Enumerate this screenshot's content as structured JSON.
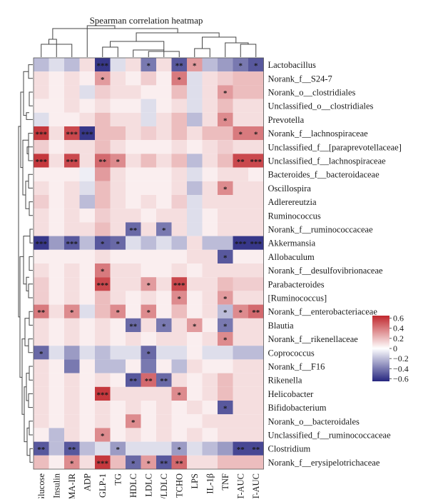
{
  "chart_data": {
    "type": "heatmap",
    "title": "Spearman correlation heatmap",
    "columns": [
      "Glucose",
      "Insulin",
      "HOMA-IR",
      "ADP",
      "GLP-1",
      "TG",
      "HDLC",
      "LDLC",
      "HDLC/LDLC",
      "TCHO",
      "LPS",
      "IL-1β",
      "TNF",
      "IGTT-AUC",
      "ITT-AUC"
    ],
    "rows": [
      "Lactobacillus",
      "Norank_f__S24-7",
      "Norank_o__clostridiales",
      "Unclassified_o__clostridiales",
      "Prevotella",
      "Norank_f__lachnospiraceae",
      "Unclassified_f__[paraprevotellaceae]",
      "Unclassified_f__lachnospiraceae",
      "Bacteroides_f__bacteroidaceae",
      "Oscillospira",
      "Adlerereutzia",
      "Ruminococcus",
      "Norank_f__ruminococcaceae",
      "Akkermansia",
      "Allobaculum",
      "Norank_f__desulfovibrionaceae",
      "Parabacteroides",
      "[Ruminococcus]",
      "Norank_f__enterobacteriaceae",
      "Blautia",
      "Norank_f__rikenellaceae",
      "Coprococcus",
      "Norank_f__F16",
      "Rikenella",
      "Helicobacter",
      "Bifidobacterium",
      "Norank_o__bacteroidales",
      "Unclassified_f__ruminococcaceae",
      "Clostridium",
      "Norank_f__erysipelotrichaceae"
    ],
    "values": [
      [
        -0.2,
        -0.1,
        -0.2,
        0.1,
        -0.6,
        -0.1,
        0.1,
        -0.4,
        0.1,
        -0.5,
        0.3,
        -0.2,
        -0.3,
        -0.4,
        -0.5
      ],
      [
        0.1,
        0.05,
        0.1,
        0.05,
        0.3,
        0.1,
        0.05,
        0.15,
        0.05,
        0.4,
        -0.1,
        0.1,
        0.15,
        0.2,
        0.2
      ],
      [
        0.1,
        0.05,
        0.1,
        -0.1,
        0.15,
        0.1,
        0.1,
        0.05,
        0.05,
        0.2,
        -0.1,
        0.1,
        0.3,
        0.2,
        0.2
      ],
      [
        0.05,
        0.05,
        0.1,
        0.05,
        0.1,
        0.05,
        0.05,
        -0.1,
        0.05,
        0.1,
        -0.1,
        0.1,
        0.2,
        0.1,
        0.1
      ],
      [
        -0.1,
        0.05,
        0.05,
        0.1,
        0.2,
        0.1,
        0.1,
        -0.1,
        0.1,
        0.2,
        -0.2,
        0.1,
        0.35,
        0.1,
        0.1
      ],
      [
        0.6,
        0.1,
        0.55,
        -0.6,
        0.2,
        0.2,
        0.1,
        0.15,
        0.1,
        0.2,
        0.1,
        0.2,
        0.2,
        0.4,
        0.4
      ],
      [
        0.15,
        0.05,
        0.1,
        0.1,
        0.2,
        0.1,
        0.05,
        0.05,
        0.05,
        0.1,
        0.05,
        0.1,
        0.15,
        0.1,
        0.1
      ],
      [
        0.6,
        0.1,
        0.55,
        0.1,
        0.45,
        0.35,
        0.1,
        0.2,
        0.1,
        0.2,
        -0.2,
        0.1,
        0.2,
        0.55,
        0.55
      ],
      [
        0.05,
        0.05,
        0.05,
        -0.05,
        0.3,
        0.1,
        0.05,
        0.05,
        0.05,
        0.1,
        -0.1,
        0.05,
        0.1,
        0.1,
        0.05
      ],
      [
        0.1,
        0.05,
        0.1,
        -0.1,
        0.2,
        0.1,
        0.05,
        0.05,
        0.05,
        0.1,
        -0.2,
        0.1,
        0.35,
        0.1,
        0.1
      ],
      [
        0.15,
        0.05,
        0.1,
        -0.2,
        0.2,
        0.1,
        0.05,
        0.1,
        0.05,
        0.15,
        -0.1,
        0.1,
        0.1,
        0.1,
        0.1
      ],
      [
        0.1,
        0.05,
        0.1,
        0.05,
        0.15,
        0.1,
        0.1,
        0.05,
        0.1,
        0.1,
        -0.1,
        0.05,
        0.1,
        0.1,
        0.1
      ],
      [
        0.1,
        0.05,
        0.1,
        0.1,
        0.2,
        0.1,
        -0.45,
        0.1,
        -0.4,
        0.1,
        -0.1,
        0.05,
        0.1,
        0.1,
        0.1
      ],
      [
        -0.6,
        -0.3,
        -0.5,
        -0.2,
        -0.5,
        -0.45,
        -0.1,
        -0.2,
        -0.1,
        -0.2,
        0.1,
        -0.2,
        -0.2,
        -0.6,
        -0.6
      ],
      [
        0.05,
        0.05,
        0.05,
        0.05,
        0.1,
        0.05,
        0.05,
        0.05,
        0.05,
        0.05,
        0.1,
        0.1,
        -0.5,
        0.05,
        0.05
      ],
      [
        0.1,
        0.05,
        0.1,
        0.05,
        0.4,
        0.1,
        0.1,
        0.05,
        0.05,
        0.1,
        0.05,
        0.1,
        0.1,
        0.1,
        0.1
      ],
      [
        0.15,
        0.05,
        0.1,
        0.05,
        0.55,
        0.1,
        0.1,
        0.3,
        0.1,
        0.55,
        0.1,
        0.1,
        0.2,
        0.15,
        0.15
      ],
      [
        0.15,
        0.05,
        0.1,
        0.05,
        0.2,
        0.1,
        0.05,
        0.1,
        0.05,
        0.35,
        0.05,
        0.1,
        0.3,
        0.1,
        0.1
      ],
      [
        0.4,
        0.1,
        0.35,
        -0.1,
        0.2,
        0.35,
        0.05,
        0.35,
        0.05,
        0.2,
        0.05,
        0.1,
        -0.2,
        0.35,
        0.45
      ],
      [
        0.1,
        0.05,
        0.1,
        0.05,
        0.1,
        0.05,
        -0.45,
        0.1,
        -0.4,
        0.1,
        0.3,
        0.05,
        -0.4,
        0.1,
        0.1
      ],
      [
        0.1,
        0.05,
        0.1,
        0.05,
        0.1,
        0.05,
        0.1,
        0.05,
        0.1,
        0.1,
        0.05,
        0.1,
        0.35,
        0.1,
        0.1
      ],
      [
        -0.45,
        -0.1,
        -0.3,
        -0.1,
        -0.2,
        -0.1,
        -0.1,
        -0.45,
        -0.1,
        -0.1,
        0.05,
        -0.1,
        -0.1,
        -0.2,
        -0.2
      ],
      [
        0.1,
        0.05,
        -0.4,
        0.05,
        -0.2,
        -0.2,
        0.05,
        -0.4,
        0.05,
        -0.2,
        0.1,
        0.05,
        0.05,
        0.1,
        0.1
      ],
      [
        0.1,
        0.05,
        0.1,
        0.05,
        0.1,
        0.05,
        -0.5,
        0.45,
        -0.45,
        0.1,
        0.05,
        0.1,
        0.2,
        0.1,
        0.1
      ],
      [
        0.1,
        0.05,
        0.1,
        0.05,
        0.6,
        0.1,
        0.1,
        0.1,
        0.1,
        0.35,
        0.05,
        0.1,
        0.2,
        0.1,
        0.1
      ],
      [
        0.1,
        0.05,
        0.1,
        0.05,
        0.1,
        0.05,
        0.1,
        0.05,
        0.1,
        0.05,
        0.1,
        0.05,
        -0.5,
        0.1,
        0.1
      ],
      [
        0.1,
        0.05,
        0.1,
        0.05,
        0.1,
        0.05,
        0.35,
        0.05,
        0.1,
        0.05,
        0.05,
        0.1,
        0.1,
        0.1,
        0.1
      ],
      [
        0.05,
        -0.2,
        0.1,
        0.05,
        0.35,
        0.05,
        0.1,
        0.05,
        0.1,
        0.05,
        0.1,
        0.05,
        0.1,
        0.1,
        0.1
      ],
      [
        -0.5,
        -0.2,
        -0.5,
        -0.2,
        -0.1,
        -0.3,
        -0.1,
        -0.1,
        -0.1,
        -0.3,
        -0.1,
        -0.2,
        -0.3,
        -0.55,
        -0.55
      ],
      [
        0.2,
        0.05,
        0.35,
        0.1,
        0.6,
        0.2,
        -0.45,
        0.3,
        -0.5,
        0.45,
        0.1,
        0.1,
        0.2,
        0.2,
        0.2
      ]
    ],
    "significance": [
      [
        "",
        "",
        "",
        "",
        "***",
        "",
        "",
        "*",
        "",
        "**",
        "*",
        "",
        "",
        "*",
        "*"
      ],
      [
        "",
        "",
        "",
        "",
        "*",
        "",
        "",
        "",
        "",
        "*",
        "",
        "",
        "",
        "",
        ""
      ],
      [
        "",
        "",
        "",
        "",
        "",
        "",
        "",
        "",
        "",
        "",
        "",
        "",
        "*",
        "",
        ""
      ],
      [
        "",
        "",
        "",
        "",
        "",
        "",
        "",
        "",
        "",
        "",
        "",
        "",
        "",
        "",
        ""
      ],
      [
        "",
        "",
        "",
        "",
        "",
        "",
        "",
        "",
        "",
        "",
        "",
        "",
        "*",
        "",
        ""
      ],
      [
        "***",
        "",
        "***",
        "***",
        "",
        "",
        "",
        "",
        "",
        "",
        "",
        "",
        "",
        "*",
        "*"
      ],
      [
        "",
        "",
        "",
        "",
        "",
        "",
        "",
        "",
        "",
        "",
        "",
        "",
        "",
        "",
        ""
      ],
      [
        "***",
        "",
        "***",
        "",
        "**",
        "*",
        "",
        "",
        "",
        "",
        "",
        "",
        "",
        "**",
        "***"
      ],
      [
        "",
        "",
        "",
        "",
        "",
        "",
        "",
        "",
        "",
        "",
        "",
        "",
        "",
        "",
        ""
      ],
      [
        "",
        "",
        "",
        "",
        "",
        "",
        "",
        "",
        "",
        "",
        "",
        "",
        "*",
        "",
        ""
      ],
      [
        "",
        "",
        "",
        "",
        "",
        "",
        "",
        "",
        "",
        "",
        "",
        "",
        "",
        "",
        ""
      ],
      [
        "",
        "",
        "",
        "",
        "",
        "",
        "",
        "",
        "",
        "",
        "",
        "",
        "",
        "",
        ""
      ],
      [
        "",
        "",
        "",
        "",
        "",
        "",
        "**",
        "",
        "*",
        "",
        "",
        "",
        "",
        "",
        ""
      ],
      [
        "***",
        "",
        "***",
        "",
        "*",
        "*",
        "",
        "",
        "",
        "",
        "",
        "",
        "",
        "***",
        "***"
      ],
      [
        "",
        "",
        "",
        "",
        "",
        "",
        "",
        "",
        "",
        "",
        "",
        "",
        "*",
        "",
        ""
      ],
      [
        "",
        "",
        "",
        "",
        "*",
        "",
        "",
        "",
        "",
        "",
        "",
        "",
        "",
        "",
        ""
      ],
      [
        "",
        "",
        "",
        "",
        "***",
        "",
        "",
        "*",
        "",
        "***",
        "",
        "",
        "",
        "",
        ""
      ],
      [
        "",
        "",
        "",
        "",
        "",
        "",
        "",
        "",
        "",
        "*",
        "",
        "",
        "*",
        "",
        ""
      ],
      [
        "**",
        "",
        "*",
        "",
        "",
        "*",
        "",
        "*",
        "",
        "",
        "",
        "",
        "*",
        "*",
        "**"
      ],
      [
        "",
        "",
        "",
        "",
        "",
        "",
        "**",
        "",
        "*",
        "",
        "*",
        "",
        "*",
        "",
        ""
      ],
      [
        "",
        "",
        "",
        "",
        "",
        "",
        "",
        "",
        "",
        "",
        "",
        "",
        "*",
        "",
        ""
      ],
      [
        "*",
        "",
        "",
        "",
        "",
        "",
        "",
        "*",
        "",
        "",
        "",
        "",
        "",
        "",
        ""
      ],
      [
        "",
        "",
        "",
        "",
        "",
        "",
        "",
        "",
        "",
        "",
        "",
        "",
        "",
        "",
        ""
      ],
      [
        "",
        "",
        "",
        "",
        "",
        "",
        "**",
        "**",
        "**",
        "",
        "",
        "",
        "",
        "",
        ""
      ],
      [
        "",
        "",
        "",
        "",
        "***",
        "",
        "",
        "",
        "",
        "*",
        "",
        "",
        "",
        "",
        ""
      ],
      [
        "",
        "",
        "",
        "",
        "",
        "",
        "",
        "",
        "",
        "",
        "",
        "",
        "*",
        "",
        ""
      ],
      [
        "",
        "",
        "",
        "",
        "",
        "",
        "*",
        "",
        "",
        "",
        "",
        "",
        "",
        "",
        ""
      ],
      [
        "",
        "",
        "",
        "",
        "*",
        "",
        "",
        "",
        "",
        "",
        "",
        "",
        "",
        "",
        ""
      ],
      [
        "**",
        "",
        "**",
        "",
        "",
        "*",
        "",
        "",
        "",
        "*",
        "",
        "",
        "",
        "**",
        "**"
      ],
      [
        "",
        "",
        "*",
        "",
        "***",
        "",
        "*",
        "*",
        "**",
        "**",
        "",
        "",
        "",
        "",
        ""
      ]
    ],
    "colorbar": {
      "ticks": [
        0.6,
        0.4,
        0.2,
        0,
        -0.2,
        -0.4,
        -0.6
      ],
      "range": [
        -0.65,
        0.65
      ],
      "high_color": "#c0272d",
      "mid_color": "#ffffff",
      "low_color": "#26267f"
    }
  }
}
